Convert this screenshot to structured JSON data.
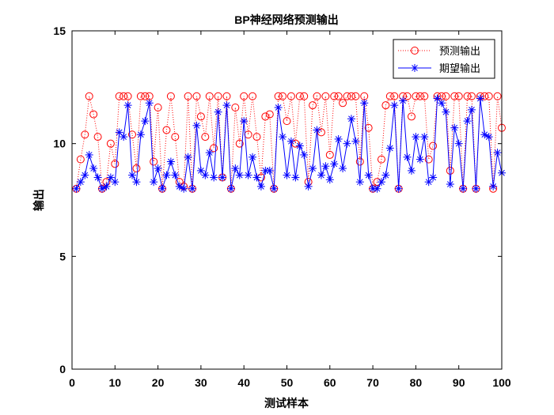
{
  "chart_data": {
    "type": "line",
    "title": "BP神经网络预测输出",
    "xlabel": "测试样本",
    "ylabel": "输出",
    "xlim": [
      0,
      100
    ],
    "ylim": [
      0,
      15
    ],
    "xticks": [
      0,
      10,
      20,
      30,
      40,
      50,
      60,
      70,
      80,
      90,
      100
    ],
    "yticks": [
      0,
      5,
      10,
      15
    ],
    "grid": false,
    "legend_position": "top-right",
    "x": [
      1,
      2,
      3,
      4,
      5,
      6,
      7,
      8,
      9,
      10,
      11,
      12,
      13,
      14,
      15,
      16,
      17,
      18,
      19,
      20,
      21,
      22,
      23,
      24,
      25,
      26,
      27,
      28,
      29,
      30,
      31,
      32,
      33,
      34,
      35,
      36,
      37,
      38,
      39,
      40,
      41,
      42,
      43,
      44,
      45,
      46,
      47,
      48,
      49,
      50,
      51,
      52,
      53,
      54,
      55,
      56,
      57,
      58,
      59,
      60,
      61,
      62,
      63,
      64,
      65,
      66,
      67,
      68,
      69,
      70,
      71,
      72,
      73,
      74,
      75,
      76,
      77,
      78,
      79,
      80,
      81,
      82,
      83,
      84,
      85,
      86,
      87,
      88,
      89,
      90,
      91,
      92,
      93,
      94,
      95,
      96,
      97,
      98,
      99,
      100
    ],
    "series": [
      {
        "name": "预测输出",
        "color": "#ff0000",
        "line_style": "dotted",
        "marker": "circle",
        "values": [
          8.0,
          9.3,
          10.4,
          12.1,
          11.3,
          10.3,
          8.0,
          8.3,
          10.0,
          9.1,
          12.1,
          12.1,
          12.1,
          10.4,
          8.9,
          12.1,
          12.1,
          12.1,
          9.2,
          11.6,
          8.0,
          10.6,
          12.1,
          10.3,
          8.3,
          8.1,
          12.1,
          8.0,
          12.1,
          11.2,
          10.3,
          12.1,
          9.8,
          12.1,
          8.5,
          12.1,
          8.0,
          11.6,
          10.0,
          12.1,
          10.4,
          12.1,
          10.3,
          8.5,
          11.2,
          11.3,
          8.0,
          12.1,
          12.1,
          11.0,
          12.1,
          10.0,
          12.1,
          12.1,
          8.3,
          11.7,
          12.1,
          10.5,
          12.1,
          9.5,
          12.1,
          12.1,
          11.8,
          12.1,
          12.1,
          12.1,
          9.2,
          12.1,
          10.7,
          8.0,
          8.3,
          9.3,
          11.7,
          12.1,
          12.1,
          8.0,
          12.1,
          12.1,
          11.2,
          12.1,
          12.1,
          12.1,
          9.3,
          9.9,
          12.1,
          12.1,
          12.1,
          8.8,
          12.1,
          12.1,
          8.0,
          12.1,
          12.1,
          8.0,
          12.1,
          12.1,
          12.1,
          8.0,
          12.1,
          10.7
        ]
      },
      {
        "name": "期望输出",
        "color": "#0000ff",
        "line_style": "solid",
        "marker": "asterisk",
        "values": [
          8.0,
          8.3,
          8.6,
          9.5,
          8.9,
          8.5,
          8.0,
          8.1,
          8.5,
          8.3,
          10.5,
          10.3,
          11.7,
          8.6,
          8.3,
          10.4,
          11.0,
          11.8,
          8.3,
          8.9,
          8.0,
          8.6,
          9.2,
          8.6,
          8.1,
          8.0,
          9.4,
          8.0,
          10.8,
          8.8,
          8.6,
          9.6,
          8.5,
          11.4,
          8.5,
          11.7,
          8.0,
          8.9,
          8.6,
          11.0,
          8.6,
          9.4,
          8.5,
          8.1,
          8.8,
          8.8,
          8.0,
          11.6,
          10.3,
          8.6,
          10.1,
          8.5,
          9.9,
          9.5,
          8.1,
          8.9,
          10.6,
          8.6,
          9.0,
          8.4,
          9.1,
          10.2,
          8.9,
          10.0,
          11.1,
          10.1,
          8.3,
          11.8,
          8.6,
          8.0,
          8.0,
          8.3,
          8.6,
          9.8,
          11.7,
          8.0,
          11.9,
          9.4,
          8.8,
          10.3,
          9.3,
          10.3,
          8.3,
          8.5,
          12.0,
          11.8,
          11.4,
          8.2,
          10.7,
          10.0,
          8.0,
          11.0,
          11.5,
          8.0,
          12.0,
          10.4,
          10.3,
          8.1,
          9.6,
          8.7
        ]
      }
    ]
  }
}
